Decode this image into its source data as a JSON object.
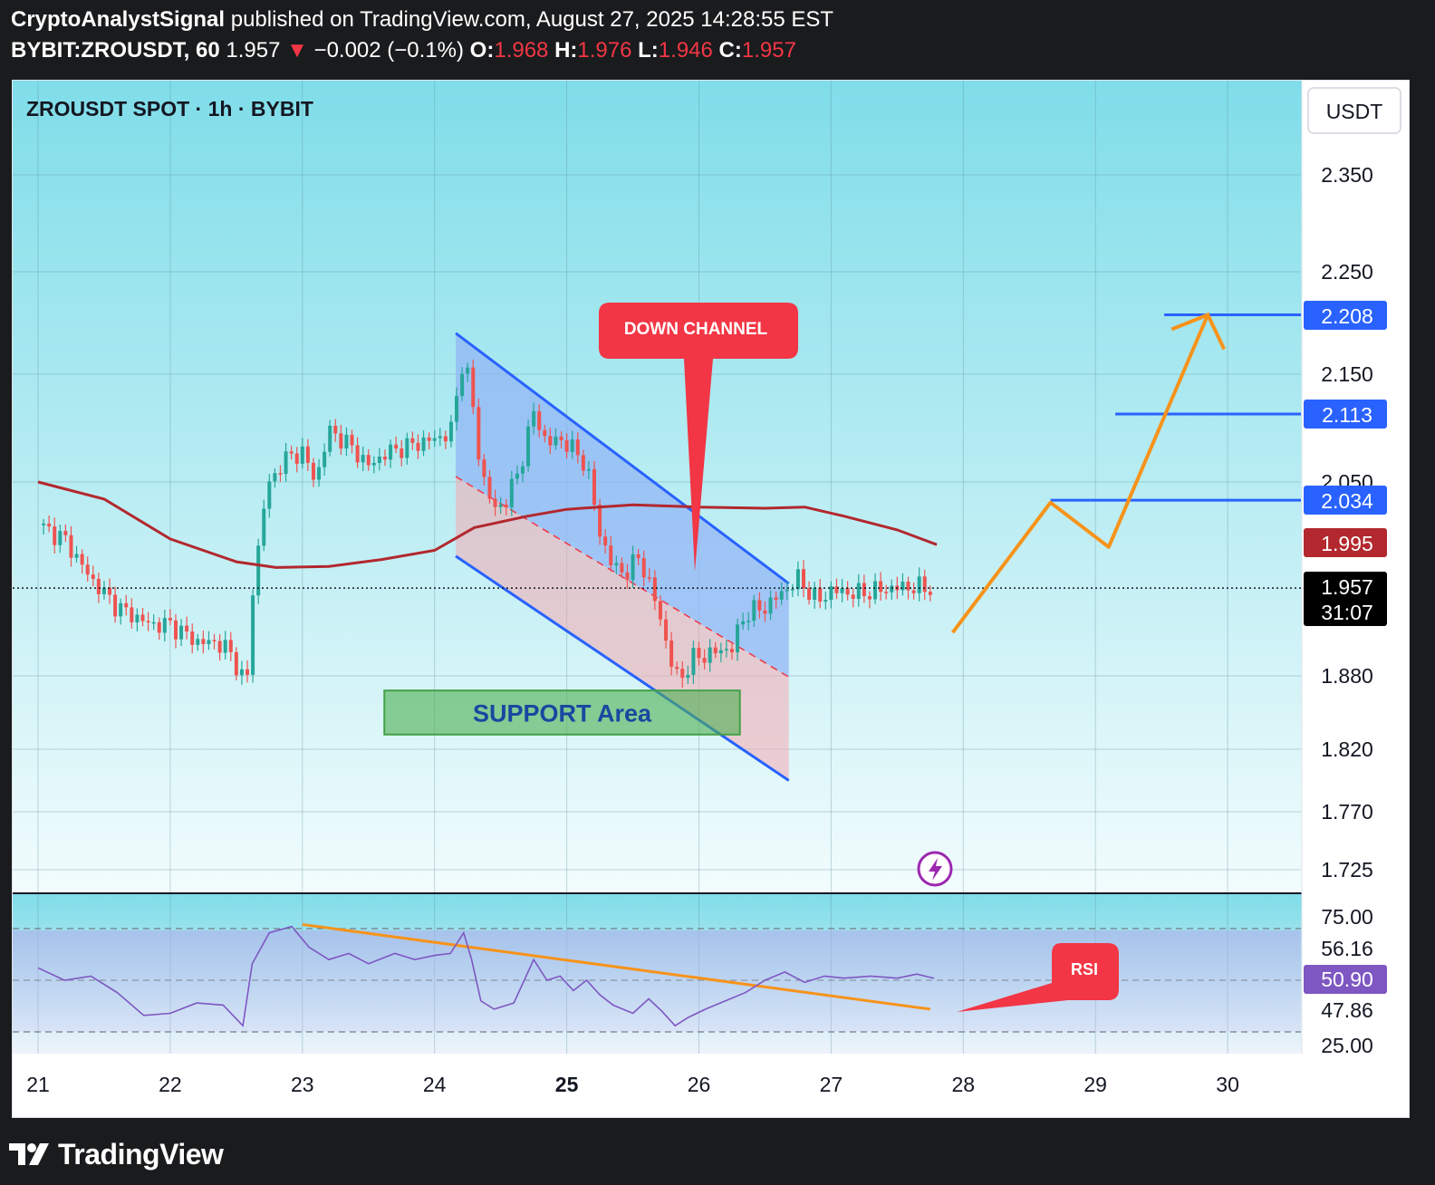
{
  "header": {
    "author": "CryptoAnalystSignal",
    "published": " published on TradingView.com, August 27, 2025 14:28:55 EST",
    "symbol": "BYBIT:ZROUSDT, 60",
    "last": "1.957",
    "change_arrow": "▼",
    "change": "−0.002 (−0.1%)",
    "o_label": "O:",
    "o_value": "1.968",
    "h_label": "H:",
    "h_value": "1.976",
    "l_label": "L:",
    "l_value": "1.946",
    "c_label": "C:",
    "c_value": "1.957"
  },
  "chart_title": "ZROUSDT SPOT · 1h · BYBIT",
  "currency_button": "USDT",
  "annotations": {
    "down_channel": "DOWN CHANNEL",
    "support": "SUPPORT Area",
    "rsi": "RSI"
  },
  "price_labels": {
    "target_3": "2.208",
    "target_2": "2.113",
    "target_1": "2.034",
    "ma": "1.995",
    "last": "1.957",
    "countdown": "31:07"
  },
  "rsi_labels": {
    "upper": "75.00",
    "lower": "25.00",
    "v1": "56.16",
    "v2": "50.90",
    "v3": "47.86"
  },
  "footer": {
    "brand": "TradingView"
  },
  "colors": {
    "up": "#26a69a",
    "down": "#ef5350",
    "ma": "#b2282e",
    "channel": "#2962ff",
    "projection": "#f7931a",
    "callout": "#f23645",
    "rsi": "#7e57c2"
  },
  "chart_data": {
    "type": "candlestick",
    "symbol": "ZROUSDT",
    "timeframe": "1h",
    "price_axis": {
      "ticks": [
        2.35,
        2.25,
        2.15,
        2.05,
        1.88,
        1.82,
        1.77,
        1.725
      ]
    },
    "x_axis": {
      "ticks": [
        "21",
        "22",
        "23",
        "24",
        "25",
        "26",
        "27",
        "28",
        "29",
        "30"
      ]
    },
    "ohlc_last": {
      "open": 1.968,
      "high": 1.976,
      "low": 1.946,
      "close": 1.957
    },
    "price_path": [
      [
        21.0,
        2.012
      ],
      [
        21.2,
        2.0
      ],
      [
        21.4,
        1.965
      ],
      [
        21.6,
        1.94
      ],
      [
        21.85,
        1.925
      ],
      [
        22.0,
        1.925
      ],
      [
        22.2,
        1.91
      ],
      [
        22.4,
        1.908
      ],
      [
        22.5,
        1.89
      ],
      [
        22.58,
        1.872
      ],
      [
        22.62,
        1.95
      ],
      [
        22.72,
        2.04
      ],
      [
        22.85,
        2.07
      ],
      [
        23.0,
        2.078
      ],
      [
        23.1,
        2.05
      ],
      [
        23.2,
        2.098
      ],
      [
        23.35,
        2.085
      ],
      [
        23.5,
        2.065
      ],
      [
        23.65,
        2.078
      ],
      [
        23.85,
        2.085
      ],
      [
        24.0,
        2.09
      ],
      [
        24.12,
        2.095
      ],
      [
        24.22,
        2.168
      ],
      [
        24.28,
        2.13
      ],
      [
        24.35,
        2.06
      ],
      [
        24.45,
        2.025
      ],
      [
        24.55,
        2.035
      ],
      [
        24.65,
        2.065
      ],
      [
        24.75,
        2.115
      ],
      [
        24.85,
        2.085
      ],
      [
        24.95,
        2.09
      ],
      [
        25.05,
        2.08
      ],
      [
        25.15,
        2.065
      ],
      [
        25.25,
        2.005
      ],
      [
        25.35,
        1.975
      ],
      [
        25.45,
        1.97
      ],
      [
        25.55,
        1.985
      ],
      [
        25.7,
        1.935
      ],
      [
        25.78,
        1.895
      ],
      [
        25.85,
        1.875
      ],
      [
        25.95,
        1.895
      ],
      [
        26.1,
        1.9
      ],
      [
        26.25,
        1.905
      ],
      [
        26.35,
        1.935
      ],
      [
        26.5,
        1.94
      ],
      [
        26.6,
        1.95
      ],
      [
        26.75,
        1.965
      ],
      [
        26.9,
        1.945
      ],
      [
        27.0,
        1.955
      ],
      [
        27.2,
        1.952
      ],
      [
        27.4,
        1.956
      ],
      [
        27.55,
        1.958
      ],
      [
        27.75,
        1.957
      ]
    ],
    "moving_average": [
      [
        21.0,
        2.05
      ],
      [
        21.5,
        2.035
      ],
      [
        22.0,
        2.0
      ],
      [
        22.5,
        1.98
      ],
      [
        22.8,
        1.975
      ],
      [
        23.2,
        1.976
      ],
      [
        23.6,
        1.982
      ],
      [
        24.0,
        1.99
      ],
      [
        24.3,
        2.01
      ],
      [
        24.7,
        2.02
      ],
      [
        25.0,
        2.026
      ],
      [
        25.5,
        2.03
      ],
      [
        26.0,
        2.028
      ],
      [
        26.5,
        2.027
      ],
      [
        26.8,
        2.028
      ],
      [
        27.1,
        2.02
      ],
      [
        27.5,
        2.008
      ],
      [
        27.8,
        1.995
      ]
    ],
    "down_channel": {
      "upper": [
        [
          24.16,
          2.19
        ],
        [
          26.68,
          1.961
        ]
      ],
      "mid": [
        [
          24.16,
          2.055
        ],
        [
          26.68,
          1.879
        ]
      ],
      "lower": [
        [
          24.16,
          1.985
        ],
        [
          26.68,
          1.795
        ]
      ]
    },
    "support_zone": {
      "from": 23.62,
      "to": 26.31,
      "low": 1.832,
      "high": 1.868
    },
    "targets": [
      2.034,
      2.113,
      2.208
    ],
    "projection_path": [
      [
        27.92,
        1.918
      ],
      [
        28.66,
        2.032
      ],
      [
        29.1,
        1.993
      ],
      [
        29.85,
        2.208
      ]
    ],
    "last_price": 1.957,
    "moving_average_last": 1.995,
    "rsi": {
      "levels": [
        75,
        25
      ],
      "last": 50.9,
      "other_values": [
        56.16,
        47.86
      ],
      "values": [
        [
          21.0,
          56
        ],
        [
          21.2,
          50
        ],
        [
          21.4,
          52
        ],
        [
          21.6,
          44
        ],
        [
          21.8,
          33
        ],
        [
          22.0,
          34
        ],
        [
          22.2,
          39
        ],
        [
          22.4,
          38
        ],
        [
          22.55,
          28
        ],
        [
          22.62,
          58
        ],
        [
          22.75,
          73
        ],
        [
          22.92,
          76
        ],
        [
          23.05,
          66
        ],
        [
          23.2,
          60
        ],
        [
          23.35,
          63
        ],
        [
          23.5,
          58
        ],
        [
          23.7,
          63
        ],
        [
          23.85,
          60
        ],
        [
          24.0,
          62
        ],
        [
          24.12,
          63
        ],
        [
          24.22,
          73
        ],
        [
          24.28,
          60
        ],
        [
          24.35,
          40
        ],
        [
          24.45,
          36
        ],
        [
          24.6,
          39
        ],
        [
          24.75,
          60
        ],
        [
          24.85,
          50
        ],
        [
          24.95,
          52
        ],
        [
          25.05,
          45
        ],
        [
          25.15,
          50
        ],
        [
          25.25,
          43
        ],
        [
          25.35,
          38
        ],
        [
          25.5,
          34
        ],
        [
          25.62,
          41
        ],
        [
          25.72,
          35
        ],
        [
          25.82,
          28
        ],
        [
          25.92,
          32
        ],
        [
          26.05,
          36
        ],
        [
          26.2,
          40
        ],
        [
          26.35,
          44
        ],
        [
          26.5,
          50
        ],
        [
          26.65,
          54
        ],
        [
          26.8,
          49
        ],
        [
          26.95,
          52
        ],
        [
          27.1,
          51
        ],
        [
          27.3,
          52
        ],
        [
          27.5,
          51
        ],
        [
          27.65,
          53
        ],
        [
          27.78,
          50.9
        ]
      ],
      "trendline": [
        [
          23.0,
          77
        ],
        [
          27.75,
          36
        ]
      ]
    }
  }
}
